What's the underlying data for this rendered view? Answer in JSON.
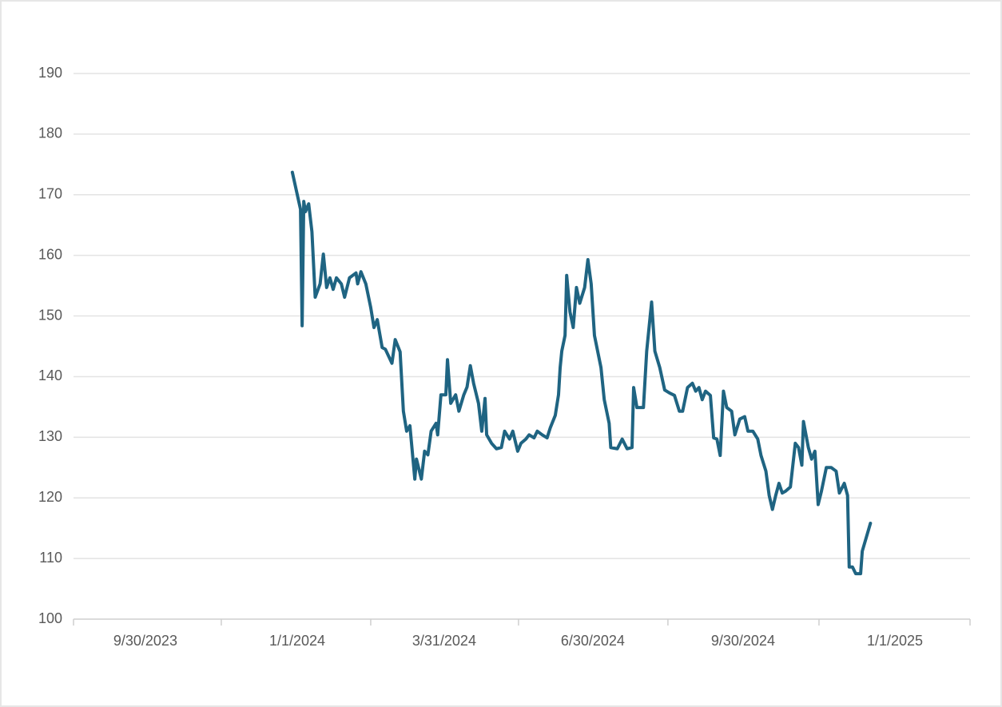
{
  "chart_data": {
    "type": "line",
    "color": "#1f6482",
    "grid": true,
    "x": [
      "2023-12-29",
      "2024-01-03",
      "2024-01-04",
      "2024-01-05",
      "2024-01-06",
      "2024-01-08",
      "2024-01-10",
      "2024-01-12",
      "2024-01-15",
      "2024-01-17",
      "2024-01-19",
      "2024-01-21",
      "2024-01-23",
      "2024-01-25",
      "2024-01-28",
      "2024-01-30",
      "2024-02-02",
      "2024-02-06",
      "2024-02-07",
      "2024-02-09",
      "2024-02-12",
      "2024-02-15",
      "2024-02-17",
      "2024-02-19",
      "2024-02-22",
      "2024-02-24",
      "2024-02-28",
      "2024-03-01",
      "2024-03-04",
      "2024-03-06",
      "2024-03-08",
      "2024-03-10",
      "2024-03-13",
      "2024-03-14",
      "2024-03-17",
      "2024-03-19",
      "2024-03-21",
      "2024-03-23",
      "2024-03-26",
      "2024-03-27",
      "2024-03-29",
      "2024-04-01",
      "2024-04-02",
      "2024-04-04",
      "2024-04-07",
      "2024-04-09",
      "2024-04-12",
      "2024-04-14",
      "2024-04-16",
      "2024-04-18",
      "2024-04-21",
      "2024-04-23",
      "2024-04-25",
      "2024-04-26",
      "2024-04-29",
      "2024-05-02",
      "2024-05-05",
      "2024-05-07",
      "2024-05-10",
      "2024-05-12",
      "2024-05-15",
      "2024-05-17",
      "2024-05-20",
      "2024-05-22",
      "2024-05-25",
      "2024-05-27",
      "2024-05-30",
      "2024-06-02",
      "2024-06-04",
      "2024-06-07",
      "2024-06-09",
      "2024-06-10",
      "2024-06-11",
      "2024-06-13",
      "2024-06-14",
      "2024-06-16",
      "2024-06-18",
      "2024-06-20",
      "2024-06-22",
      "2024-06-25",
      "2024-06-27",
      "2024-06-29",
      "2024-07-01",
      "2024-07-05",
      "2024-07-07",
      "2024-07-10",
      "2024-07-11",
      "2024-07-15",
      "2024-07-18",
      "2024-07-21",
      "2024-07-24",
      "2024-07-25",
      "2024-07-27",
      "2024-07-31",
      "2024-08-02",
      "2024-08-05",
      "2024-08-07",
      "2024-08-10",
      "2024-08-13",
      "2024-08-16",
      "2024-08-19",
      "2024-08-22",
      "2024-08-24",
      "2024-08-27",
      "2024-08-30",
      "2024-09-01",
      "2024-09-03",
      "2024-09-05",
      "2024-09-07",
      "2024-09-10",
      "2024-09-12",
      "2024-09-14",
      "2024-09-16",
      "2024-09-18",
      "2024-09-20",
      "2024-09-23",
      "2024-09-25",
      "2024-09-28",
      "2024-10-01",
      "2024-10-03",
      "2024-10-06",
      "2024-10-09",
      "2024-10-11",
      "2024-10-14",
      "2024-10-16",
      "2024-10-18",
      "2024-10-20",
      "2024-10-22",
      "2024-10-24",
      "2024-10-26",
      "2024-10-29",
      "2024-11-01",
      "2024-11-03",
      "2024-11-05",
      "2024-11-06",
      "2024-11-09",
      "2024-11-11",
      "2024-11-13",
      "2024-11-15",
      "2024-11-17",
      "2024-11-20",
      "2024-11-23",
      "2024-11-26",
      "2024-11-28",
      "2024-12-01",
      "2024-12-03",
      "2024-12-04",
      "2024-12-06",
      "2024-12-08",
      "2024-12-11",
      "2024-12-12",
      "2024-12-17"
    ],
    "values": [
      173.7,
      167.6,
      148.4,
      168.9,
      167.2,
      168.5,
      163.9,
      153.1,
      155.3,
      160.2,
      154.7,
      156.3,
      154.4,
      156.3,
      155.3,
      153.1,
      156.3,
      157.1,
      155.3,
      157.3,
      155.3,
      151.4,
      148.1,
      149.4,
      144.8,
      144.5,
      142.2,
      146.1,
      144.1,
      134.3,
      131.0,
      131.9,
      123.1,
      126.4,
      123.1,
      127.7,
      127.1,
      131.0,
      132.3,
      130.4,
      137.0,
      137.0,
      142.8,
      135.6,
      137.0,
      134.3,
      137.0,
      138.3,
      141.8,
      138.9,
      135.6,
      131.0,
      136.4,
      130.4,
      129.0,
      128.1,
      128.3,
      131.0,
      129.7,
      131.0,
      127.7,
      129.0,
      129.7,
      130.4,
      129.9,
      131.0,
      130.4,
      129.9,
      131.6,
      133.6,
      137.0,
      141.5,
      144.2,
      146.8,
      156.7,
      150.7,
      148.1,
      154.7,
      152.1,
      154.7,
      159.3,
      155.3,
      146.8,
      141.5,
      136.2,
      132.3,
      128.3,
      128.1,
      129.7,
      128.1,
      128.3,
      138.2,
      134.9,
      134.9,
      144.2,
      152.3,
      144.2,
      141.5,
      137.8,
      137.3,
      136.9,
      134.3,
      134.3,
      138.2,
      138.9,
      137.6,
      138.2,
      136.2,
      137.6,
      136.9,
      129.9,
      129.7,
      127.0,
      137.6,
      134.9,
      134.3,
      130.4,
      133.0,
      133.4,
      131.0,
      131.0,
      129.7,
      127.0,
      124.4,
      120.4,
      118.1,
      120.4,
      122.4,
      120.8,
      121.1,
      121.8,
      129.0,
      128.3,
      125.4,
      132.6,
      128.3,
      126.4,
      127.7,
      118.9,
      121.1,
      125.0,
      125.0,
      124.4,
      120.8,
      122.4,
      120.4,
      108.6,
      108.6,
      107.5,
      107.5,
      111.2,
      115.8
    ],
    "xlim": [
      "2023-08-17",
      "2025-02-16"
    ],
    "xticks": [
      {
        "value": "2023-09-30",
        "label": "9/30/2023"
      },
      {
        "value": "2024-01-01",
        "label": "1/1/2024"
      },
      {
        "value": "2024-03-31",
        "label": "3/31/2024"
      },
      {
        "value": "2024-06-30",
        "label": "6/30/2024"
      },
      {
        "value": "2024-09-30",
        "label": "9/30/2024"
      },
      {
        "value": "2025-01-01",
        "label": "1/1/2025"
      }
    ],
    "ylim": [
      100,
      190
    ],
    "yticks": [
      100,
      110,
      120,
      130,
      140,
      150,
      160,
      170,
      180,
      190
    ]
  }
}
